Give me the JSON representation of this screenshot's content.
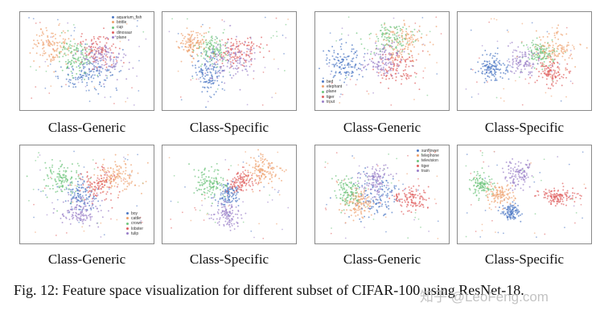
{
  "colors": [
    "#4e79c4",
    "#eea16e",
    "#6fc57e",
    "#e06060",
    "#9a7fc8"
  ],
  "panels": [
    {
      "label": "Class-Generic",
      "legend": [
        "aquarium_fish",
        "bottle",
        "cup",
        "dinosaur",
        "plane"
      ],
      "clusters": [
        [
          0.5,
          0.62,
          0.2,
          0.18,
          140,
          0
        ],
        [
          0.25,
          0.35,
          0.15,
          0.17,
          120,
          1
        ],
        [
          0.42,
          0.45,
          0.12,
          0.18,
          120,
          2
        ],
        [
          0.58,
          0.38,
          0.15,
          0.14,
          110,
          3
        ],
        [
          0.62,
          0.48,
          0.16,
          0.14,
          110,
          4
        ]
      ]
    },
    {
      "label": "Class-Specific",
      "legend": [],
      "clusters": [
        [
          0.35,
          0.62,
          0.1,
          0.2,
          130,
          0
        ],
        [
          0.22,
          0.32,
          0.1,
          0.13,
          120,
          1
        ],
        [
          0.38,
          0.38,
          0.1,
          0.12,
          110,
          2
        ],
        [
          0.58,
          0.4,
          0.16,
          0.13,
          120,
          3
        ],
        [
          0.52,
          0.48,
          0.17,
          0.18,
          110,
          4
        ]
      ]
    },
    {
      "label": "Class-Generic",
      "legend": [
        "bed",
        "elephant",
        "plane",
        "tiger",
        "trout"
      ],
      "clusters": [
        [
          0.22,
          0.52,
          0.14,
          0.18,
          130,
          0
        ],
        [
          0.65,
          0.3,
          0.17,
          0.18,
          120,
          1
        ],
        [
          0.55,
          0.28,
          0.14,
          0.13,
          110,
          2
        ],
        [
          0.62,
          0.55,
          0.14,
          0.16,
          110,
          3
        ],
        [
          0.5,
          0.5,
          0.12,
          0.15,
          110,
          4
        ]
      ]
    },
    {
      "label": "Class-Specific",
      "legend": [],
      "clusters": [
        [
          0.26,
          0.58,
          0.09,
          0.13,
          130,
          0
        ],
        [
          0.72,
          0.38,
          0.14,
          0.18,
          120,
          1
        ],
        [
          0.62,
          0.42,
          0.09,
          0.12,
          110,
          2
        ],
        [
          0.7,
          0.62,
          0.1,
          0.13,
          110,
          3
        ],
        [
          0.5,
          0.5,
          0.11,
          0.13,
          100,
          4
        ]
      ]
    },
    {
      "label": "Class-Generic",
      "legend": [
        "boy",
        "cattle",
        "crown",
        "lobster",
        "tulip"
      ],
      "clusters": [
        [
          0.45,
          0.52,
          0.1,
          0.16,
          110,
          0
        ],
        [
          0.7,
          0.32,
          0.15,
          0.14,
          130,
          1
        ],
        [
          0.3,
          0.35,
          0.12,
          0.15,
          120,
          2
        ],
        [
          0.58,
          0.4,
          0.13,
          0.14,
          110,
          3
        ],
        [
          0.45,
          0.68,
          0.13,
          0.14,
          120,
          4
        ]
      ]
    },
    {
      "label": "Class-Specific",
      "legend": [],
      "clusters": [
        [
          0.5,
          0.5,
          0.08,
          0.12,
          110,
          0
        ],
        [
          0.75,
          0.25,
          0.12,
          0.13,
          130,
          1
        ],
        [
          0.35,
          0.4,
          0.12,
          0.14,
          120,
          2
        ],
        [
          0.6,
          0.38,
          0.1,
          0.11,
          110,
          3
        ],
        [
          0.48,
          0.7,
          0.1,
          0.14,
          110,
          4
        ]
      ]
    },
    {
      "label": "Class-Generic",
      "legend": [
        "sunflower",
        "telephone",
        "television",
        "tiger",
        "train"
      ],
      "clusters": [
        [
          0.45,
          0.5,
          0.18,
          0.22,
          130,
          0
        ],
        [
          0.32,
          0.58,
          0.11,
          0.14,
          120,
          1
        ],
        [
          0.25,
          0.48,
          0.09,
          0.14,
          110,
          2
        ],
        [
          0.72,
          0.55,
          0.12,
          0.12,
          120,
          3
        ],
        [
          0.45,
          0.35,
          0.13,
          0.14,
          110,
          4
        ]
      ]
    },
    {
      "label": "Class-Specific",
      "legend": [],
      "clusters": [
        [
          0.4,
          0.68,
          0.06,
          0.08,
          110,
          0
        ],
        [
          0.32,
          0.5,
          0.08,
          0.1,
          110,
          1
        ],
        [
          0.18,
          0.4,
          0.07,
          0.1,
          110,
          2
        ],
        [
          0.75,
          0.52,
          0.14,
          0.08,
          130,
          3
        ],
        [
          0.45,
          0.3,
          0.09,
          0.12,
          110,
          4
        ]
      ]
    }
  ],
  "caption": "Fig. 12: Feature space visualization for different subset of CIFAR-100 using ResNet-18.",
  "watermark": "知乎 @LeoFeng.com"
}
